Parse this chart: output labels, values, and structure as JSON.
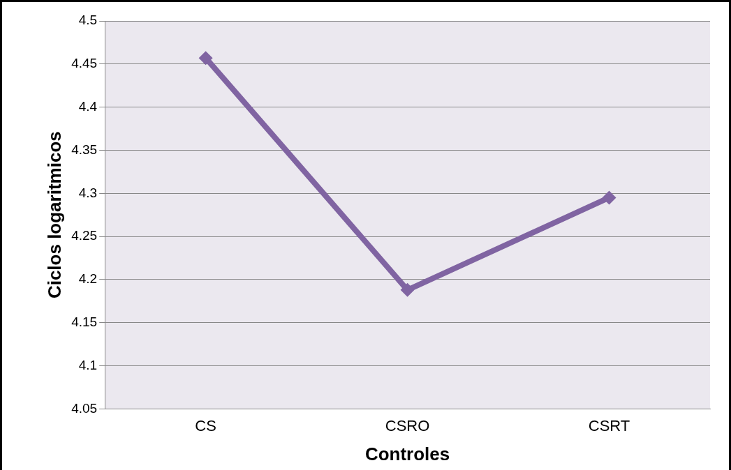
{
  "chart_data": {
    "type": "line",
    "xlabel": "Controles",
    "ylabel": "Ciclos logaritmicos",
    "categories": [
      "CS",
      "CSRO",
      "CSRT"
    ],
    "series": [
      {
        "color": "#8064a2",
        "values": [
          4.457,
          4.188,
          4.295
        ]
      }
    ],
    "ylim": [
      4.05,
      4.5
    ],
    "yticks": [
      4.05,
      4.1,
      4.15,
      4.2,
      4.25,
      4.3,
      4.35,
      4.4,
      4.45,
      4.5
    ],
    "grid": "y",
    "legend": false,
    "marker": "diamond",
    "line_style": "solid"
  }
}
